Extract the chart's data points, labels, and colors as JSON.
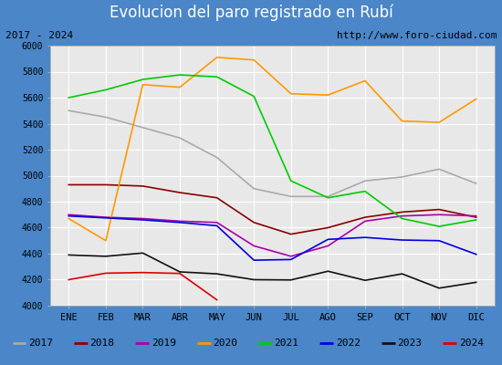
{
  "title": "Evolucion del paro registrado en Rubí",
  "subtitle_left": "2017 - 2024",
  "subtitle_right": "http://www.foro-ciudad.com",
  "ylim": [
    4000,
    6000
  ],
  "months": [
    "ENE",
    "FEB",
    "MAR",
    "ABR",
    "MAY",
    "JUN",
    "JUL",
    "AGO",
    "SEP",
    "OCT",
    "NOV",
    "DIC"
  ],
  "series": {
    "2017": {
      "color": "#aaaaaa",
      "data": [
        5500,
        5450,
        5370,
        5290,
        5140,
        4900,
        4840,
        4840,
        4960,
        4990,
        5050,
        4940
      ]
    },
    "2018": {
      "color": "#8b0000",
      "data": [
        4930,
        4930,
        4920,
        4870,
        4830,
        4640,
        4550,
        4600,
        4680,
        4720,
        4740,
        4680
      ]
    },
    "2019": {
      "color": "#aa00aa",
      "data": [
        4700,
        4680,
        4670,
        4650,
        4640,
        4460,
        4380,
        4460,
        4650,
        4690,
        4700,
        4690
      ]
    },
    "2020": {
      "color": "#ff9900",
      "data": [
        4670,
        4500,
        5700,
        5680,
        5910,
        5890,
        5630,
        5620,
        5730,
        5420,
        5410,
        5590
      ]
    },
    "2021": {
      "color": "#00cc00",
      "data": [
        5600,
        5660,
        5740,
        5775,
        5760,
        5610,
        4960,
        4830,
        4880,
        4670,
        4610,
        4660
      ]
    },
    "2022": {
      "color": "#0000dd",
      "data": [
        4690,
        4675,
        4660,
        4640,
        4615,
        4350,
        4355,
        4510,
        4525,
        4505,
        4500,
        4395
      ]
    },
    "2023": {
      "color": "#111111",
      "data": [
        4390,
        4380,
        4405,
        4260,
        4245,
        4200,
        4198,
        4265,
        4195,
        4245,
        4135,
        4180
      ]
    },
    "2024": {
      "color": "#dd0000",
      "data": [
        4200,
        4250,
        4255,
        4248,
        4045,
        null,
        null,
        null,
        null,
        null,
        null,
        null
      ]
    }
  },
  "title_bg": "#4a86c8",
  "title_color": "#ffffff",
  "subtitle_bg": "#e8e8e8",
  "plot_bg": "#e8e8e8",
  "grid_color": "#ffffff",
  "border_color": "#aaaaaa",
  "title_fontsize": 12,
  "tick_fontsize": 7,
  "legend_fontsize": 8,
  "yticks": [
    4000,
    4200,
    4400,
    4600,
    4800,
    5000,
    5200,
    5400,
    5600,
    5800,
    6000
  ]
}
